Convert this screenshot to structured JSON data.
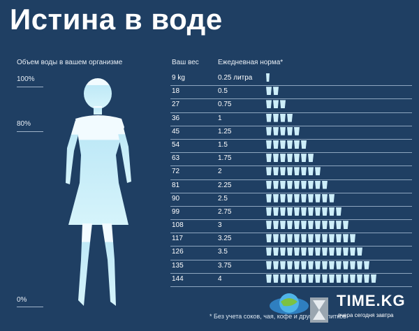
{
  "title": "Истина в воде",
  "left": {
    "header": "Объем воды в вашем организме",
    "percent_labels": [
      "100%",
      "80%",
      "0%"
    ]
  },
  "table": {
    "col_weight": "Ваш вес",
    "col_norm": "Ежедневная норма*",
    "rows": [
      {
        "weight": "9 kg",
        "norm": "0.25 литра",
        "cups": 0.5
      },
      {
        "weight": "18",
        "norm": "0.5",
        "cups": 2
      },
      {
        "weight": "27",
        "norm": "0.75",
        "cups": 3
      },
      {
        "weight": "36",
        "norm": "1",
        "cups": 4
      },
      {
        "weight": "45",
        "norm": "1.25",
        "cups": 5
      },
      {
        "weight": "54",
        "norm": "1.5",
        "cups": 6
      },
      {
        "weight": "63",
        "norm": "1.75",
        "cups": 7
      },
      {
        "weight": "72",
        "norm": "2",
        "cups": 8
      },
      {
        "weight": "81",
        "norm": "2.25",
        "cups": 9
      },
      {
        "weight": "90",
        "norm": "2.5",
        "cups": 10
      },
      {
        "weight": "99",
        "norm": "2.75",
        "cups": 11
      },
      {
        "weight": "108",
        "norm": "3",
        "cups": 12
      },
      {
        "weight": "117",
        "norm": "3.25",
        "cups": 13
      },
      {
        "weight": "126",
        "norm": "3.5",
        "cups": 14
      },
      {
        "weight": "135",
        "norm": "3.75",
        "cups": 15
      },
      {
        "weight": "144",
        "norm": "4",
        "cups": 16
      }
    ]
  },
  "footnote": "* Без учета соков, чая, кофе и других напитков",
  "logo": {
    "name": "TIME.KG",
    "tagline": "вчера сегодня завтра"
  },
  "colors": {
    "background": "#1f3f63",
    "cup": "#cdeef9",
    "figure": "#d6f4fb"
  }
}
